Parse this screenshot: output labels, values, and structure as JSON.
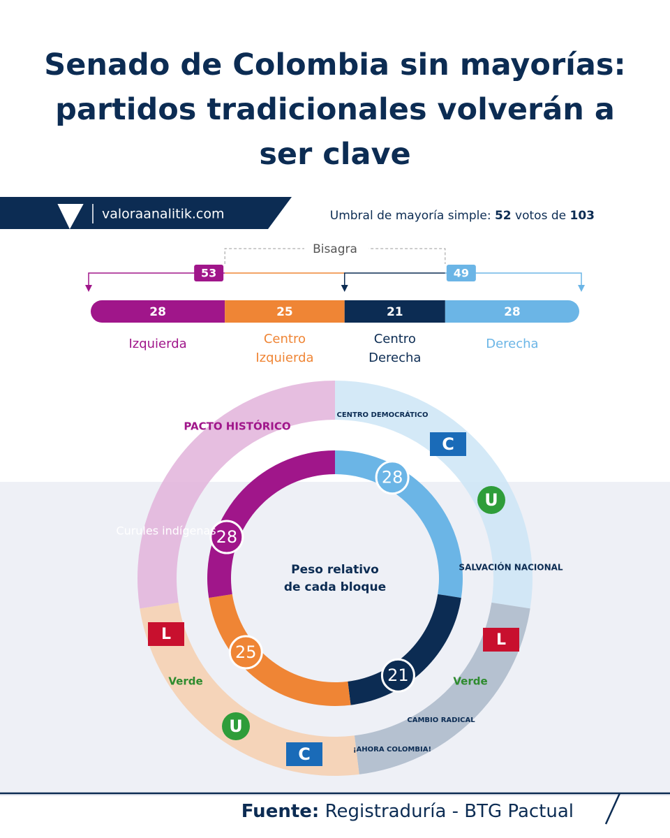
{
  "header": {
    "title": "Senado de Colombia sin mayorías: partidos tradicionales volverán a ser clave",
    "site": "valoraanalitik.com",
    "threshold_label": "Umbral de mayoría simple:",
    "majority": 52,
    "votes_of": "votos de",
    "total": 103
  },
  "chart_data": [
    {
      "type": "stacked_bar",
      "categories": [
        "Izquierda",
        "Centro Izquierda",
        "Centro Derecha",
        "Derecha"
      ],
      "values": [
        28,
        25,
        21,
        28
      ],
      "colors": [
        "#a0168a",
        "#ef8535",
        "#0c2c53",
        "#6bb5e6"
      ],
      "annotations": {
        "hinge": "Bisagra",
        "left_block": 53,
        "right_block": 49
      }
    },
    {
      "type": "pie",
      "title": "Peso relativo de cada bloque",
      "categories": [
        "Derecha",
        "Centro Derecha",
        "Centro Izquierda",
        "Izquierda"
      ],
      "values": [
        28,
        21,
        25,
        28
      ],
      "colors": [
        "#6bb5e6",
        "#0c2c53",
        "#ef8535",
        "#a0168a"
      ],
      "outer_colors": [
        "#cde5f6",
        "#aab8c9",
        "#f6cfae",
        "#e2b3db"
      ]
    }
  ],
  "parties": [
    "PACTO HISTÓRICO",
    "Curules indígenas",
    "L",
    "Verde",
    "U",
    "C",
    "CENTRO DEMOCRÁTICO",
    "C",
    "U",
    "SALVACIÓN NACIONAL",
    "L",
    "Verde",
    "CAMBIO RADICAL",
    "¡AHORA COLOMBIA!"
  ],
  "footer": {
    "source_label": "Fuente:",
    "source": "Registraduría - BTG Pactual"
  }
}
